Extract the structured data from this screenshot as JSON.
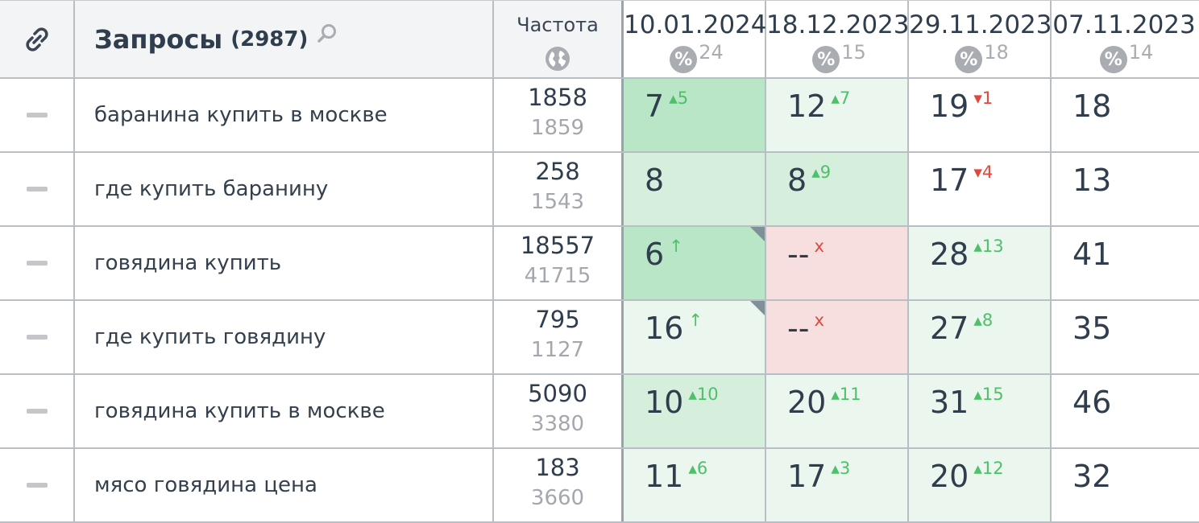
{
  "header": {
    "title": "Запросы",
    "count": "(2987)",
    "freq_label": "Частота",
    "dates": [
      {
        "date": "10.01.2024",
        "pct_symbol": "%",
        "pct": "24"
      },
      {
        "date": "18.12.2023",
        "pct_symbol": "%",
        "pct": "15"
      },
      {
        "date": "29.11.2023",
        "pct_symbol": "%",
        "pct": "18"
      },
      {
        "date": "07.11.2023",
        "pct_symbol": "%",
        "pct": "14"
      }
    ]
  },
  "colors": {
    "strong_green": "#b8e6c6",
    "mid_green": "#d5efdc",
    "light_green": "#eaf6ee",
    "red_bg": "#f7dfdf",
    "up": "#4fbf6a",
    "down": "#e0473f"
  },
  "rows": [
    {
      "query": "баранина купить в москве",
      "freq_main": "1858",
      "freq_sub": "1859",
      "positions": [
        {
          "value": "7",
          "delta": "▴5",
          "dir": "up",
          "bg": "strong"
        },
        {
          "value": "12",
          "delta": "▴7",
          "dir": "up",
          "bg": "light"
        },
        {
          "value": "19",
          "delta": "▾1",
          "dir": "down",
          "bg": "none"
        },
        {
          "value": "18",
          "delta": "",
          "dir": "",
          "bg": "none"
        }
      ]
    },
    {
      "query": "где купить баранину",
      "freq_main": "258",
      "freq_sub": "1543",
      "positions": [
        {
          "value": "8",
          "delta": "",
          "dir": "",
          "bg": "mid"
        },
        {
          "value": "8",
          "delta": "▴9",
          "dir": "up",
          "bg": "mid"
        },
        {
          "value": "17",
          "delta": "▾4",
          "dir": "down",
          "bg": "none"
        },
        {
          "value": "13",
          "delta": "",
          "dir": "",
          "bg": "none"
        }
      ]
    },
    {
      "query": "говядина купить",
      "freq_main": "18557",
      "freq_sub": "41715",
      "positions": [
        {
          "value": "6",
          "delta": "↑",
          "dir": "up",
          "bg": "strong",
          "corner": true
        },
        {
          "value": "--",
          "delta": "x",
          "dir": "down",
          "bg": "red"
        },
        {
          "value": "28",
          "delta": "▴13",
          "dir": "up",
          "bg": "light"
        },
        {
          "value": "41",
          "delta": "",
          "dir": "",
          "bg": "none"
        }
      ]
    },
    {
      "query": "где купить говядину",
      "freq_main": "795",
      "freq_sub": "1127",
      "positions": [
        {
          "value": "16",
          "delta": "↑",
          "dir": "up",
          "bg": "light",
          "corner": true
        },
        {
          "value": "--",
          "delta": "x",
          "dir": "down",
          "bg": "red"
        },
        {
          "value": "27",
          "delta": "▴8",
          "dir": "up",
          "bg": "light"
        },
        {
          "value": "35",
          "delta": "",
          "dir": "",
          "bg": "none"
        }
      ]
    },
    {
      "query": "говядина купить в москве",
      "freq_main": "5090",
      "freq_sub": "3380",
      "positions": [
        {
          "value": "10",
          "delta": "▴10",
          "dir": "up",
          "bg": "mid"
        },
        {
          "value": "20",
          "delta": "▴11",
          "dir": "up",
          "bg": "light"
        },
        {
          "value": "31",
          "delta": "▴15",
          "dir": "up",
          "bg": "light"
        },
        {
          "value": "46",
          "delta": "",
          "dir": "",
          "bg": "none"
        }
      ]
    },
    {
      "query": "мясо говядина цена",
      "freq_main": "183",
      "freq_sub": "3660",
      "positions": [
        {
          "value": "11",
          "delta": "▴6",
          "dir": "up",
          "bg": "light"
        },
        {
          "value": "17",
          "delta": "▴3",
          "dir": "up",
          "bg": "light"
        },
        {
          "value": "20",
          "delta": "▴12",
          "dir": "up",
          "bg": "light"
        },
        {
          "value": "32",
          "delta": "",
          "dir": "",
          "bg": "none"
        }
      ]
    }
  ]
}
